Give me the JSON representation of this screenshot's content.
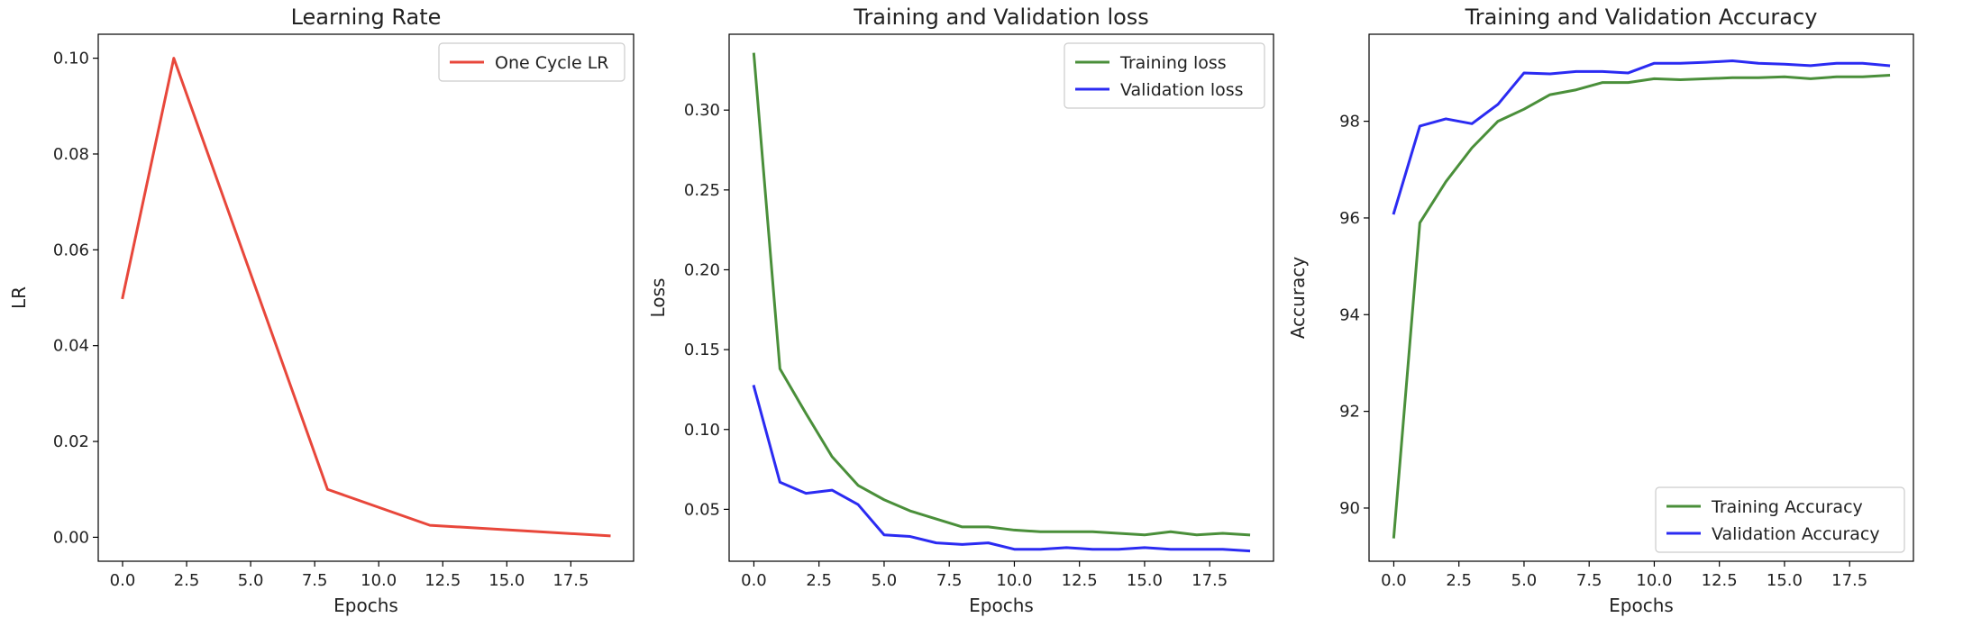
{
  "chart_data": [
    {
      "type": "line",
      "title": "Learning Rate",
      "xlabel": "Epochs",
      "ylabel": "LR",
      "xlim": [
        -0.95,
        19.95
      ],
      "ylim": [
        -0.005,
        0.105
      ],
      "xticks": [
        0,
        2.5,
        5,
        7.5,
        10,
        12.5,
        15,
        17.5
      ],
      "xtick_labels": [
        "0.0",
        "2.5",
        "5.0",
        "7.5",
        "10.0",
        "12.5",
        "15.0",
        "17.5"
      ],
      "yticks": [
        0,
        0.02,
        0.04,
        0.06,
        0.08,
        0.1
      ],
      "ytick_labels": [
        "0.00",
        "0.02",
        "0.04",
        "0.06",
        "0.08",
        "0.10"
      ],
      "legend_position": "top-right",
      "grid": false,
      "x": [
        0,
        2,
        8,
        12,
        19
      ],
      "series": [
        {
          "name": "One Cycle LR",
          "color": "#e8473b",
          "values": [
            0.05,
            0.1,
            0.01,
            0.0025,
            0.0003
          ]
        }
      ]
    },
    {
      "type": "line",
      "title": "Training and Validation loss",
      "xlabel": "Epochs",
      "ylabel": "Loss",
      "xlim": [
        -0.95,
        19.95
      ],
      "ylim": [
        0.0175,
        0.3475
      ],
      "xticks": [
        0,
        2.5,
        5,
        7.5,
        10,
        12.5,
        15,
        17.5
      ],
      "xtick_labels": [
        "0.0",
        "2.5",
        "5.0",
        "7.5",
        "10.0",
        "12.5",
        "15.0",
        "17.5"
      ],
      "yticks": [
        0.05,
        0.1,
        0.15,
        0.2,
        0.25,
        0.3
      ],
      "ytick_labels": [
        "0.05",
        "0.10",
        "0.15",
        "0.20",
        "0.25",
        "0.30"
      ],
      "legend_position": "top-right",
      "grid": false,
      "x": [
        0,
        1,
        2,
        3,
        4,
        5,
        6,
        7,
        8,
        9,
        10,
        11,
        12,
        13,
        14,
        15,
        16,
        17,
        18,
        19
      ],
      "series": [
        {
          "name": "Training loss",
          "color": "#4a8f3a",
          "values": [
            0.335,
            0.138,
            0.11,
            0.083,
            0.065,
            0.056,
            0.049,
            0.044,
            0.039,
            0.039,
            0.037,
            0.036,
            0.036,
            0.036,
            0.035,
            0.034,
            0.036,
            0.034,
            0.035,
            0.034
          ]
        },
        {
          "name": "Validation loss",
          "color": "#2b2bf2",
          "values": [
            0.127,
            0.067,
            0.06,
            0.062,
            0.053,
            0.034,
            0.033,
            0.029,
            0.028,
            0.029,
            0.025,
            0.025,
            0.026,
            0.025,
            0.025,
            0.026,
            0.025,
            0.025,
            0.025,
            0.024
          ]
        }
      ]
    },
    {
      "type": "line",
      "title": "Training and Validation Accuracy",
      "xlabel": "Epochs",
      "ylabel": "Accuracy",
      "xlim": [
        -0.95,
        19.95
      ],
      "ylim": [
        88.9,
        99.8
      ],
      "xticks": [
        0,
        2.5,
        5,
        7.5,
        10,
        12.5,
        15,
        17.5
      ],
      "xtick_labels": [
        "0.0",
        "2.5",
        "5.0",
        "7.5",
        "10.0",
        "12.5",
        "15.0",
        "17.5"
      ],
      "yticks": [
        90,
        92,
        94,
        96,
        98
      ],
      "ytick_labels": [
        "90",
        "92",
        "94",
        "96",
        "98"
      ],
      "legend_position": "bottom-right",
      "grid": false,
      "x": [
        0,
        1,
        2,
        3,
        4,
        5,
        6,
        7,
        8,
        9,
        10,
        11,
        12,
        13,
        14,
        15,
        16,
        17,
        18,
        19
      ],
      "series": [
        {
          "name": "Training Accuracy",
          "color": "#4a8f3a",
          "values": [
            89.4,
            95.9,
            96.75,
            97.45,
            98.0,
            98.25,
            98.55,
            98.65,
            98.8,
            98.8,
            98.88,
            98.86,
            98.88,
            98.9,
            98.9,
            98.92,
            98.88,
            98.92,
            98.92,
            98.95
          ]
        },
        {
          "name": "Validation Accuracy",
          "color": "#2b2bf2",
          "values": [
            96.1,
            97.9,
            98.05,
            97.95,
            98.35,
            99.0,
            98.98,
            99.03,
            99.03,
            99.0,
            99.2,
            99.2,
            99.22,
            99.25,
            99.2,
            99.18,
            99.15,
            99.2,
            99.2,
            99.15
          ]
        }
      ]
    }
  ]
}
